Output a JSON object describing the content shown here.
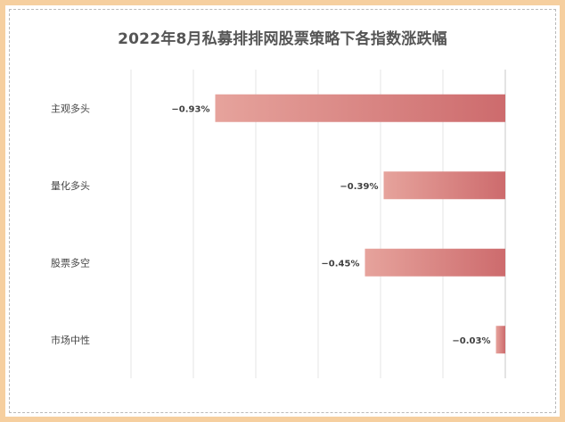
{
  "chart_data": {
    "type": "bar",
    "orientation": "horizontal",
    "title": "2022年8月私募排排网股票策略下各指数涨跌幅",
    "categories": [
      "主观多头",
      "量化多头",
      "股票多空",
      "市场中性"
    ],
    "values": [
      -0.93,
      -0.39,
      -0.45,
      -0.03
    ],
    "value_labels": [
      "−0.93%",
      "−0.39%",
      "−0.45%",
      "−0.03%"
    ],
    "xlim": [
      -1.3,
      0.1
    ],
    "grid": true,
    "legend": "none",
    "bar_color_start": "#e6a39c",
    "bar_color_end": "#cd6b6d"
  }
}
